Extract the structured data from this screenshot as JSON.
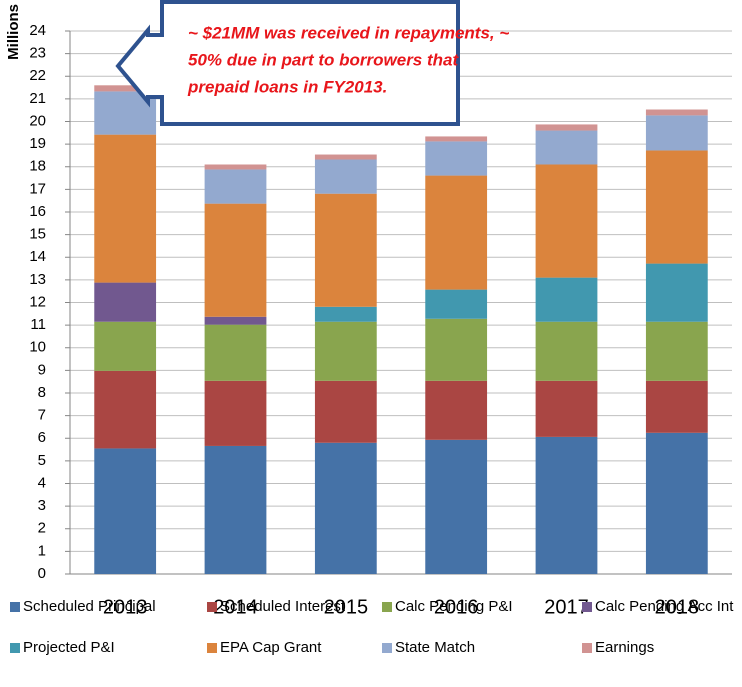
{
  "chart_data": {
    "type": "stacked_bar",
    "y_label": "Millions",
    "categories": [
      "2013",
      "2014",
      "2015",
      "2016",
      "2017",
      "2018"
    ],
    "ylim": [
      0,
      24
    ],
    "yticks": [
      0,
      1,
      2,
      3,
      4,
      5,
      6,
      7,
      8,
      9,
      10,
      11,
      12,
      13,
      14,
      15,
      16,
      17,
      18,
      19,
      20,
      21,
      22,
      23,
      24
    ],
    "grid": true,
    "legend": "bottom",
    "series": [
      {
        "name": "Scheduled Principal",
        "color": "#4572a7",
        "values": [
          5.55,
          5.66,
          5.8,
          5.93,
          6.06,
          6.24
        ]
      },
      {
        "name": "Scheduled Interest",
        "color": "#aa4643",
        "values": [
          3.43,
          2.88,
          2.74,
          2.61,
          2.48,
          2.3
        ]
      },
      {
        "name": "Calc Pending P&I",
        "color": "#89a54e",
        "values": [
          2.17,
          2.48,
          2.61,
          2.74,
          2.61,
          2.61
        ]
      },
      {
        "name": "Calc Pending Acc Int",
        "color": "#71588f",
        "values": [
          1.73,
          0.35,
          0,
          0,
          0,
          0
        ]
      },
      {
        "name": "Projected P&I",
        "color": "#4198af",
        "values": [
          0,
          0,
          0.66,
          1.29,
          1.95,
          2.57
        ]
      },
      {
        "name": "EPA Cap Grant",
        "color": "#db843d",
        "values": [
          6.54,
          5.0,
          5.0,
          5.04,
          5.0,
          5.0
        ]
      },
      {
        "name": "State Match",
        "color": "#93a9cf",
        "values": [
          1.91,
          1.51,
          1.51,
          1.51,
          1.5,
          1.55
        ]
      },
      {
        "name": "Earnings",
        "color": "#d19392",
        "values": [
          0.27,
          0.22,
          0.22,
          0.22,
          0.27,
          0.26
        ]
      }
    ],
    "annotation": {
      "lines": [
        "~ $21MM was received in repayments, ~",
        "50% due in part to borrowers that",
        "prepaid loans in FY2013."
      ]
    }
  }
}
